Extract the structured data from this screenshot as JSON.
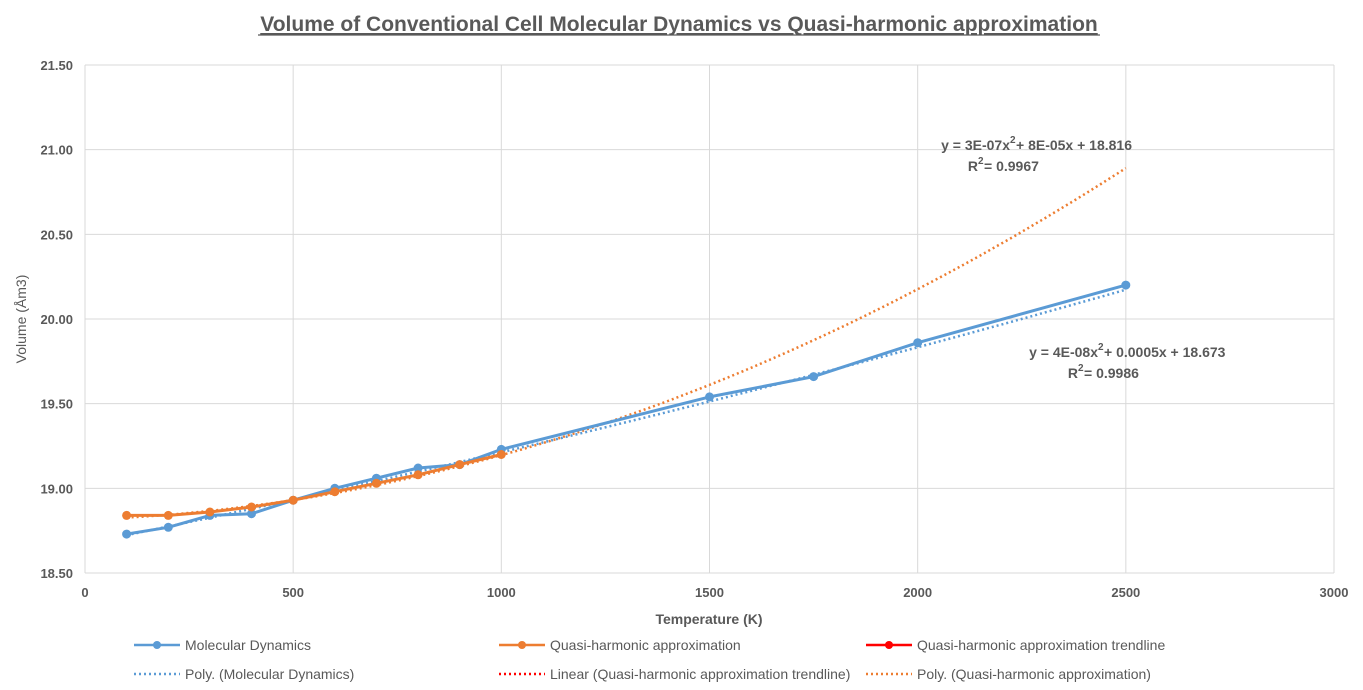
{
  "chart_data": {
    "type": "line",
    "title": "Volume of Conventional Cell Molecular Dynamics vs Quasi-harmonic approximation",
    "xlabel": "Temperature (K)",
    "ylabel": "Volume (Åm3)",
    "xlim": [
      0,
      3000
    ],
    "ylim": [
      18.5,
      21.5
    ],
    "x_ticks": [
      "0",
      "500",
      "1000",
      "1500",
      "2000",
      "2500",
      "3000"
    ],
    "y_ticks": [
      "18.50",
      "19.00",
      "19.50",
      "20.00",
      "20.50",
      "21.00",
      "21.50"
    ],
    "grid": true,
    "legend_position": "bottom",
    "colors": {
      "molecular_dynamics": "#5B9BD5",
      "quasi_harmonic": "#ED7D31",
      "qha_trendline": "#FF0000"
    },
    "series": [
      {
        "name": "Molecular Dynamics",
        "x": [
          100,
          200,
          300,
          400,
          500,
          600,
          700,
          800,
          900,
          1000,
          1500,
          1750,
          2000,
          2500
        ],
        "values": [
          18.73,
          18.77,
          18.84,
          18.85,
          18.93,
          19.0,
          19.06,
          19.12,
          19.14,
          19.23,
          19.54,
          19.66,
          19.86,
          20.2
        ]
      },
      {
        "name": "Quasi-harmonic approximation",
        "x": [
          100,
          200,
          300,
          400,
          500,
          600,
          700,
          800,
          900,
          1000
        ],
        "values": [
          18.84,
          18.84,
          18.86,
          18.89,
          18.93,
          18.98,
          19.03,
          19.08,
          19.14,
          19.2
        ]
      }
    ],
    "trendlines": [
      {
        "name": "Poly. (Molecular Dynamics)",
        "type": "poly2",
        "coefficients": [
          4e-08,
          0.0005,
          18.673
        ],
        "x_range": [
          100,
          2500
        ],
        "equation": "y = 4E-08x",
        "equation_tail": " + 0.0005x + 18.673",
        "r2": "R",
        "r2_tail": " = 0.9986"
      },
      {
        "name": "Poly. (Quasi-harmonic approximation)",
        "type": "poly2",
        "coefficients": [
          3e-07,
          8e-05,
          18.816
        ],
        "x_range": [
          100,
          2500
        ],
        "equation": "y = 3E-07x",
        "equation_tail": " + 8E-05x + 18.816",
        "r2": "R",
        "r2_tail": " = 0.9967"
      }
    ],
    "legend": [
      "Molecular Dynamics",
      "Quasi-harmonic approximation",
      "Quasi-harmonic approximation trendline",
      "Poly. (Molecular Dynamics)",
      "Linear (Quasi-harmonic approximation trendline)",
      "Poly. (Quasi-harmonic approximation)"
    ],
    "superscript": "2"
  }
}
